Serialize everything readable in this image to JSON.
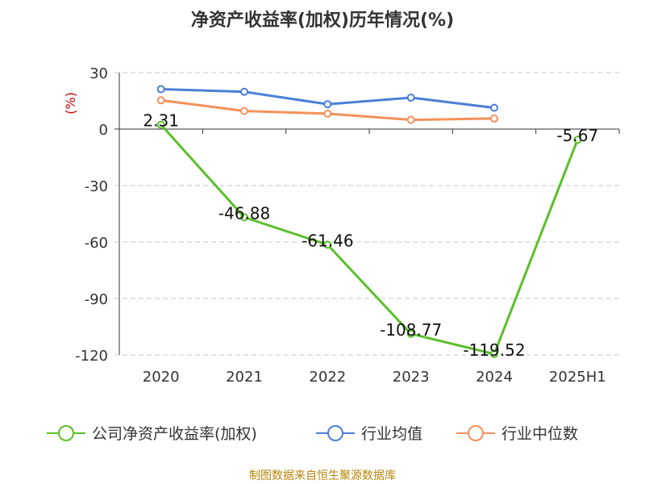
{
  "chart_data": {
    "type": "line",
    "title": "净资产收益率(加权)历年情况(%)",
    "y_unit": "(%)",
    "categories": [
      "2020",
      "2021",
      "2022",
      "2023",
      "2024",
      "2025H1"
    ],
    "ylim": [
      -120,
      30
    ],
    "yticks": [
      30,
      0,
      -30,
      -60,
      -90,
      -120
    ],
    "ytick_labels": [
      "30",
      "0",
      "-30",
      "-60",
      "-90",
      "-120"
    ],
    "grid": true,
    "legend_position": "bottom",
    "series": [
      {
        "name": "公司净资产收益率(加权)",
        "color": "#5cbf2a",
        "values": [
          2.31,
          -46.88,
          -61.46,
          -108.77,
          -119.52,
          -5.67
        ],
        "labels": [
          "2.31",
          "-46.88",
          "-61.46",
          "-108.77",
          "-119.52",
          "-5.67"
        ]
      },
      {
        "name": "行业均值",
        "color": "#4a7fd6",
        "values": [
          21.2,
          19.8,
          13.2,
          16.7,
          11.3,
          null
        ]
      },
      {
        "name": "行业中位数",
        "color": "#f4905a",
        "values": [
          15.3,
          9.6,
          8.2,
          4.9,
          5.6,
          null
        ]
      }
    ]
  },
  "footer": {
    "source": "制图数据来自恒生聚源数据库"
  }
}
